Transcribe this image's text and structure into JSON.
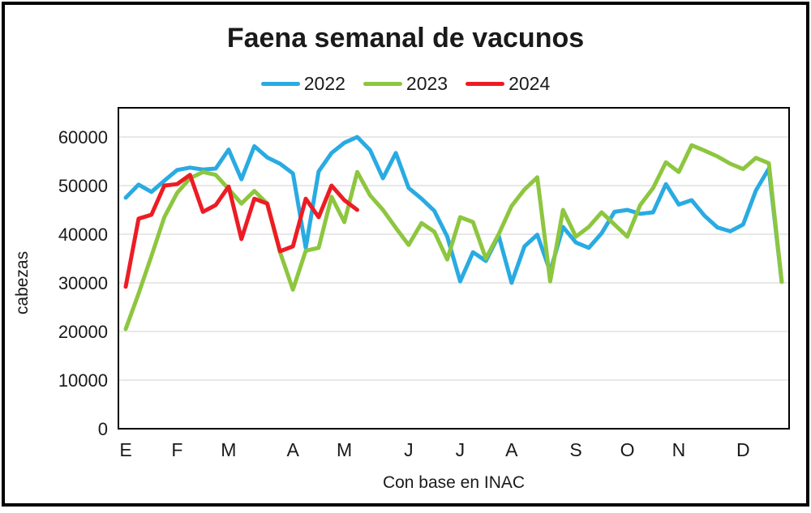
{
  "title": "Faena semanal de vacunos",
  "footnote": "Con base en INAC",
  "y_axis": {
    "label": "cabezas",
    "tick_values": [
      0,
      10000,
      20000,
      30000,
      40000,
      50000,
      60000
    ],
    "min": 0,
    "max": 66000
  },
  "x_axis": {
    "month_labels": [
      "E",
      "F",
      "M",
      "A",
      "M",
      "J",
      "J",
      "A",
      "S",
      "O",
      "N",
      "D"
    ],
    "month_start_weeks": [
      0,
      4,
      8,
      13,
      17,
      22,
      26,
      30,
      35,
      39,
      43,
      48
    ],
    "total_weeks": 52
  },
  "style": {
    "grid_color": "#d9d9d9",
    "axis_color": "#000000",
    "text_color": "#1a1a1a",
    "line_width": 5
  },
  "chart_data": {
    "type": "line",
    "title": "Faena semanal de vacunos",
    "xlabel": "Con base en INAC",
    "ylabel": "cabezas",
    "x_unit": "week of year",
    "ylim": [
      0,
      66000
    ],
    "grid": "horizontal",
    "legend_position": "top",
    "series": [
      {
        "name": "2022",
        "color": "#29ABE2",
        "values": [
          47500,
          50200,
          48700,
          51000,
          53200,
          53700,
          53300,
          53500,
          57400,
          51300,
          58100,
          55800,
          54500,
          52500,
          37200,
          52900,
          56700,
          58800,
          60000,
          57300,
          51500,
          56700,
          49500,
          47300,
          44800,
          39500,
          30300,
          36300,
          34500,
          39700,
          30000,
          37500,
          39900,
          32300,
          41500,
          38300,
          37200,
          40200,
          44600,
          45000,
          44200,
          44500,
          50300,
          46100,
          47000,
          43800,
          41400,
          40600,
          42000,
          49000,
          53500,
          30200
        ]
      },
      {
        "name": "2023",
        "color": "#8DC63F",
        "values": [
          20500,
          27800,
          35500,
          43500,
          48500,
          51500,
          52800,
          52200,
          49300,
          46300,
          48900,
          46300,
          36300,
          28600,
          36600,
          37200,
          47700,
          42500,
          52800,
          48000,
          45000,
          41300,
          37800,
          42300,
          40500,
          34800,
          43500,
          42500,
          35000,
          40000,
          45800,
          49200,
          51700,
          30300,
          45000,
          39500,
          41500,
          44500,
          42000,
          39500,
          46000,
          49500,
          54800,
          52800,
          58300,
          57200,
          56000,
          54500,
          53400,
          55700,
          54600,
          30200
        ]
      },
      {
        "name": "2024",
        "color": "#ED1C24",
        "values": [
          29200,
          43200,
          44000,
          50000,
          50300,
          52200,
          44600,
          46000,
          49800,
          39000,
          47300,
          46300,
          36500,
          37500,
          47300,
          43500,
          50000,
          47000,
          45000
        ]
      }
    ]
  }
}
